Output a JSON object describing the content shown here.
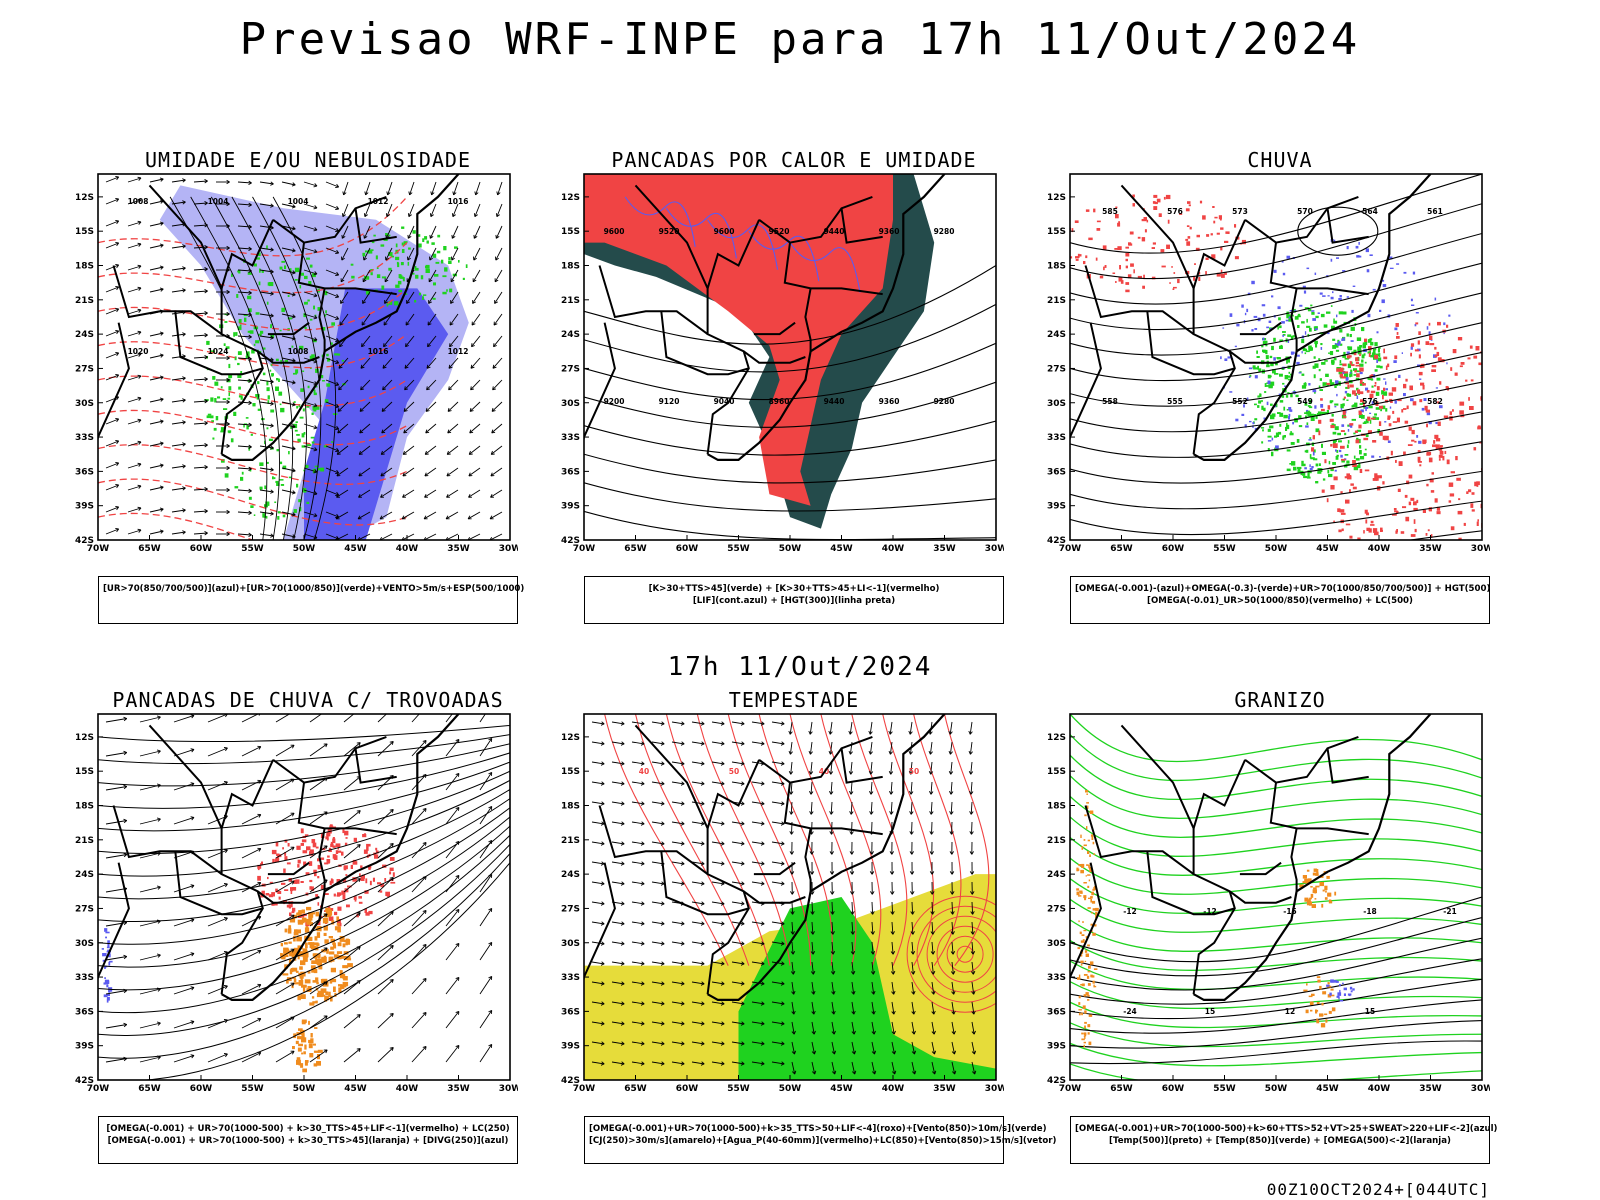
{
  "title": "Previsao WRF-INPE  para 17h 11/Out/2024",
  "mid_title": "17h 11/Out/2024",
  "footer": "00Z10OCT2024+[044UTC]",
  "axes": {
    "lat_labels": [
      "12S",
      "15S",
      "18S",
      "21S",
      "24S",
      "27S",
      "30S",
      "33S",
      "36S",
      "39S",
      "42S"
    ],
    "lon_labels": [
      "70W",
      "65W",
      "60W",
      "55W",
      "50W",
      "45W",
      "40W",
      "35W",
      "30W"
    ]
  },
  "colors": {
    "blue": "#5b5bf0",
    "light_blue": "#b4b4f5",
    "green": "#1fd21f",
    "red": "#f04444",
    "dark_teal": "#244b4b",
    "orange": "#f08c1e",
    "yellow": "#e6dc3a",
    "purple": "#8a3ccc"
  },
  "panels": [
    {
      "title": "UMIDADE E/OU NEBULOSIDADE",
      "legend": [
        "[UR>70(850/700/500)](azul)+[UR>70(1000/850)](verde)+VENTO>5m/s+ESP(500/1000)"
      ],
      "contour_labels": [
        "1008",
        "1004",
        "1004",
        "1012",
        "1016",
        "1020",
        "1024",
        "1008",
        "1016",
        "1012"
      ]
    },
    {
      "title": "PANCADAS POR CALOR E UMIDADE",
      "legend": [
        "[K>30+TTS>45](verde) + [K>30+TTS>45+LI<-1](vermelho)",
        "[LIF](cont.azul) + [HGT(300)](linha preta)"
      ],
      "contour_labels": [
        "9600",
        "9520",
        "9600",
        "9520",
        "9440",
        "9360",
        "9280",
        "9200",
        "9120",
        "9040",
        "8960",
        "9440",
        "9360",
        "9280"
      ]
    },
    {
      "title": "CHUVA",
      "legend": [
        "[OMEGA(-0.001)-(azul)+OMEGA(-0.3)-(verde)+UR>70(1000/850/700/500)] + HGT(500)",
        "[OMEGA(-0.01)_UR>50(1000/850)(vermelho) + LC(500)"
      ],
      "contour_labels": [
        "585",
        "576",
        "573",
        "570",
        "564",
        "561",
        "558",
        "555",
        "552",
        "549",
        "576",
        "582"
      ]
    },
    {
      "title": "PANCADAS DE CHUVA C/ TROVOADAS",
      "legend": [
        "[OMEGA(-0.001) + UR>70(1000-500) + k>30_TTS>45+LIF<-1](vermelho) + LC(250)",
        "[OMEGA(-0.001) + UR>70(1000-500) + k>30_TTS>45](laranja) + [DIVG(250)](azul)"
      ],
      "contour_labels": []
    },
    {
      "title": "TEMPESTADE",
      "legend": [
        "[OMEGA(-0.001)+UR>70(1000-500)+k>35_TTS>50+LIF<-4](roxo)+[Vento(850)>10m/s](verde)",
        "[CJ(250)>30m/s](amarelo)+[Agua_P(40-60mm)](vermelho)+LC(850)+[Vento(850)>15m/s](vetor)"
      ],
      "contour_labels": [
        "40",
        "50",
        "40",
        "50"
      ]
    },
    {
      "title": "GRANIZO",
      "legend": [
        "[OMEGA(-0.001)+UR>70(1000-500)+k>60+TTS>52+VT>25+SWEAT>220+LIF<-2](azul)",
        "[Temp(500)](preto) + [Temp(850)](verde) + [OMEGA(500)<-2](laranja)"
      ],
      "contour_labels": [
        "-12",
        "-12",
        "-15",
        "-18",
        "-21",
        "-24",
        "15",
        "12",
        "15"
      ]
    }
  ]
}
